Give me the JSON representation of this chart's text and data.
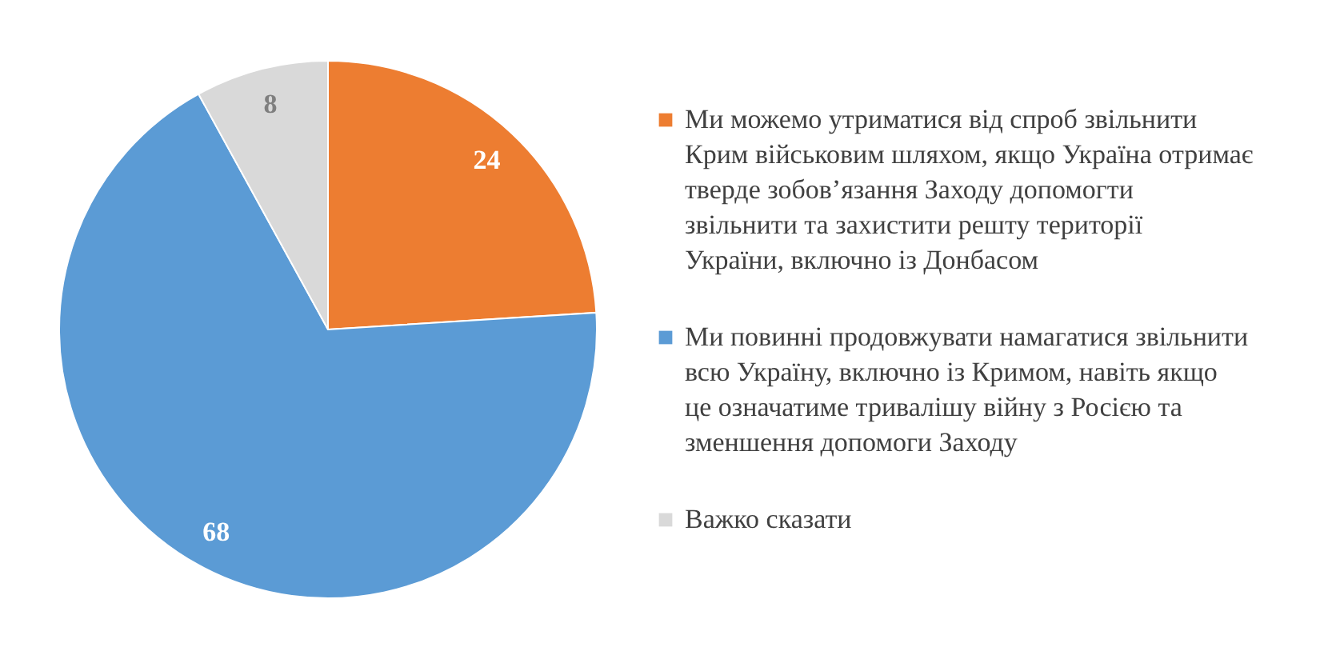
{
  "chart_data": {
    "type": "pie",
    "categories": [
      "Ми можемо утриматися від спроб звільнити Крим військовим шляхом, якщо Україна отримає тверде зобов’язання Заходу допомогти звільнити та захистити решту території України, включно із Донбасом",
      "Ми повинні продовжувати намагатися звільнити всю Україну, включно із Кримом, навіть якщо це означатиме тривалішу війну з Росією та зменшення допомоги Заходу",
      "Важко сказати"
    ],
    "values": [
      24,
      68,
      8
    ],
    "colors": [
      "#ed7d31",
      "#5b9bd5",
      "#d9d9d9"
    ],
    "data_labels": true,
    "legend": "right"
  }
}
